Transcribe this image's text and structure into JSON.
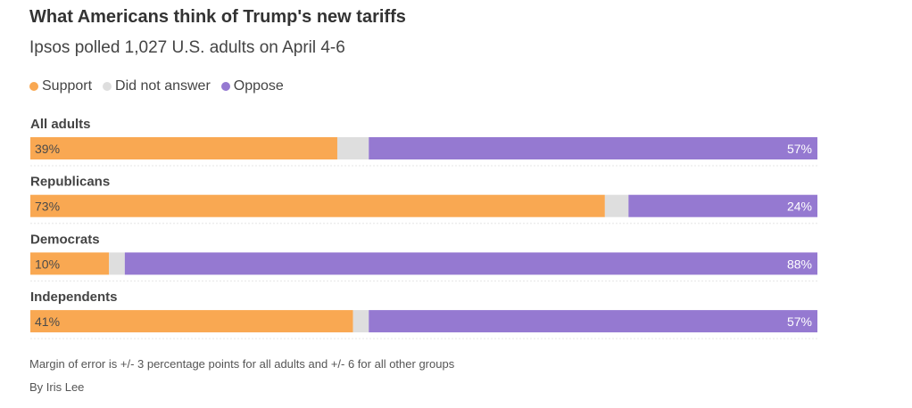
{
  "chart_data": {
    "type": "bar",
    "orientation": "horizontal-stacked",
    "title": "What Americans think of Trump's new tariffs",
    "subtitle": "Ipsos polled 1,027 U.S. adults on April 4-6",
    "categories": [
      "All adults",
      "Republicans",
      "Democrats",
      "Independents"
    ],
    "series": [
      {
        "name": "Support",
        "color": "#F9A852",
        "values": [
          39,
          73,
          10,
          41
        ]
      },
      {
        "name": "Did not answer",
        "color": "#DEDEDE",
        "values": [
          4,
          3,
          2,
          2
        ]
      },
      {
        "name": "Oppose",
        "color": "#9579D1",
        "values": [
          57,
          24,
          88,
          57
        ]
      }
    ],
    "value_labels": {
      "Support": [
        "39%",
        "73%",
        "10%",
        "41%"
      ],
      "Oppose": [
        "57%",
        "24%",
        "88%",
        "57%"
      ]
    },
    "xlim": [
      0,
      100
    ],
    "legend_position": "top-left",
    "grid": false
  },
  "footer": {
    "note": "Margin of error is +/- 3 percentage points for all adults and +/- 6 for all other groups",
    "byline": "By Iris Lee"
  }
}
